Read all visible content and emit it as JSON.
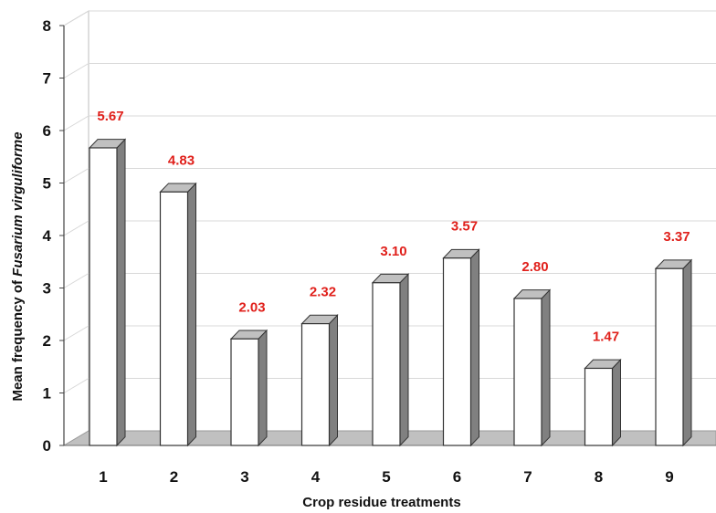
{
  "chart_data": {
    "type": "bar",
    "categories": [
      "1",
      "2",
      "3",
      "4",
      "5",
      "6",
      "7",
      "8",
      "9"
    ],
    "values": [
      5.67,
      4.83,
      2.03,
      2.32,
      3.1,
      3.57,
      2.8,
      1.47,
      3.37
    ],
    "value_labels": [
      "5.67",
      "4.83",
      "2.03",
      "2.32",
      "3.10",
      "3.57",
      "2.80",
      "1.47",
      "3.37"
    ],
    "title": "",
    "xlabel": "Crop residue treatments",
    "ylabel_prefix": "Mean frequency of ",
    "ylabel_italic": "Fusarium virguliforme",
    "ylim": [
      0,
      8
    ],
    "yticks": [
      "0",
      "1",
      "2",
      "3",
      "4",
      "5",
      "6",
      "7",
      "8"
    ],
    "grid": true,
    "legend": "none",
    "style": "3d-column",
    "colors": {
      "bar_front": "#ffffff",
      "bar_side": "#808080",
      "bar_top": "#c0c0c0",
      "floor": "#c0c0c0",
      "label": "#e0201b",
      "gridline": "#d8d8d8"
    }
  }
}
